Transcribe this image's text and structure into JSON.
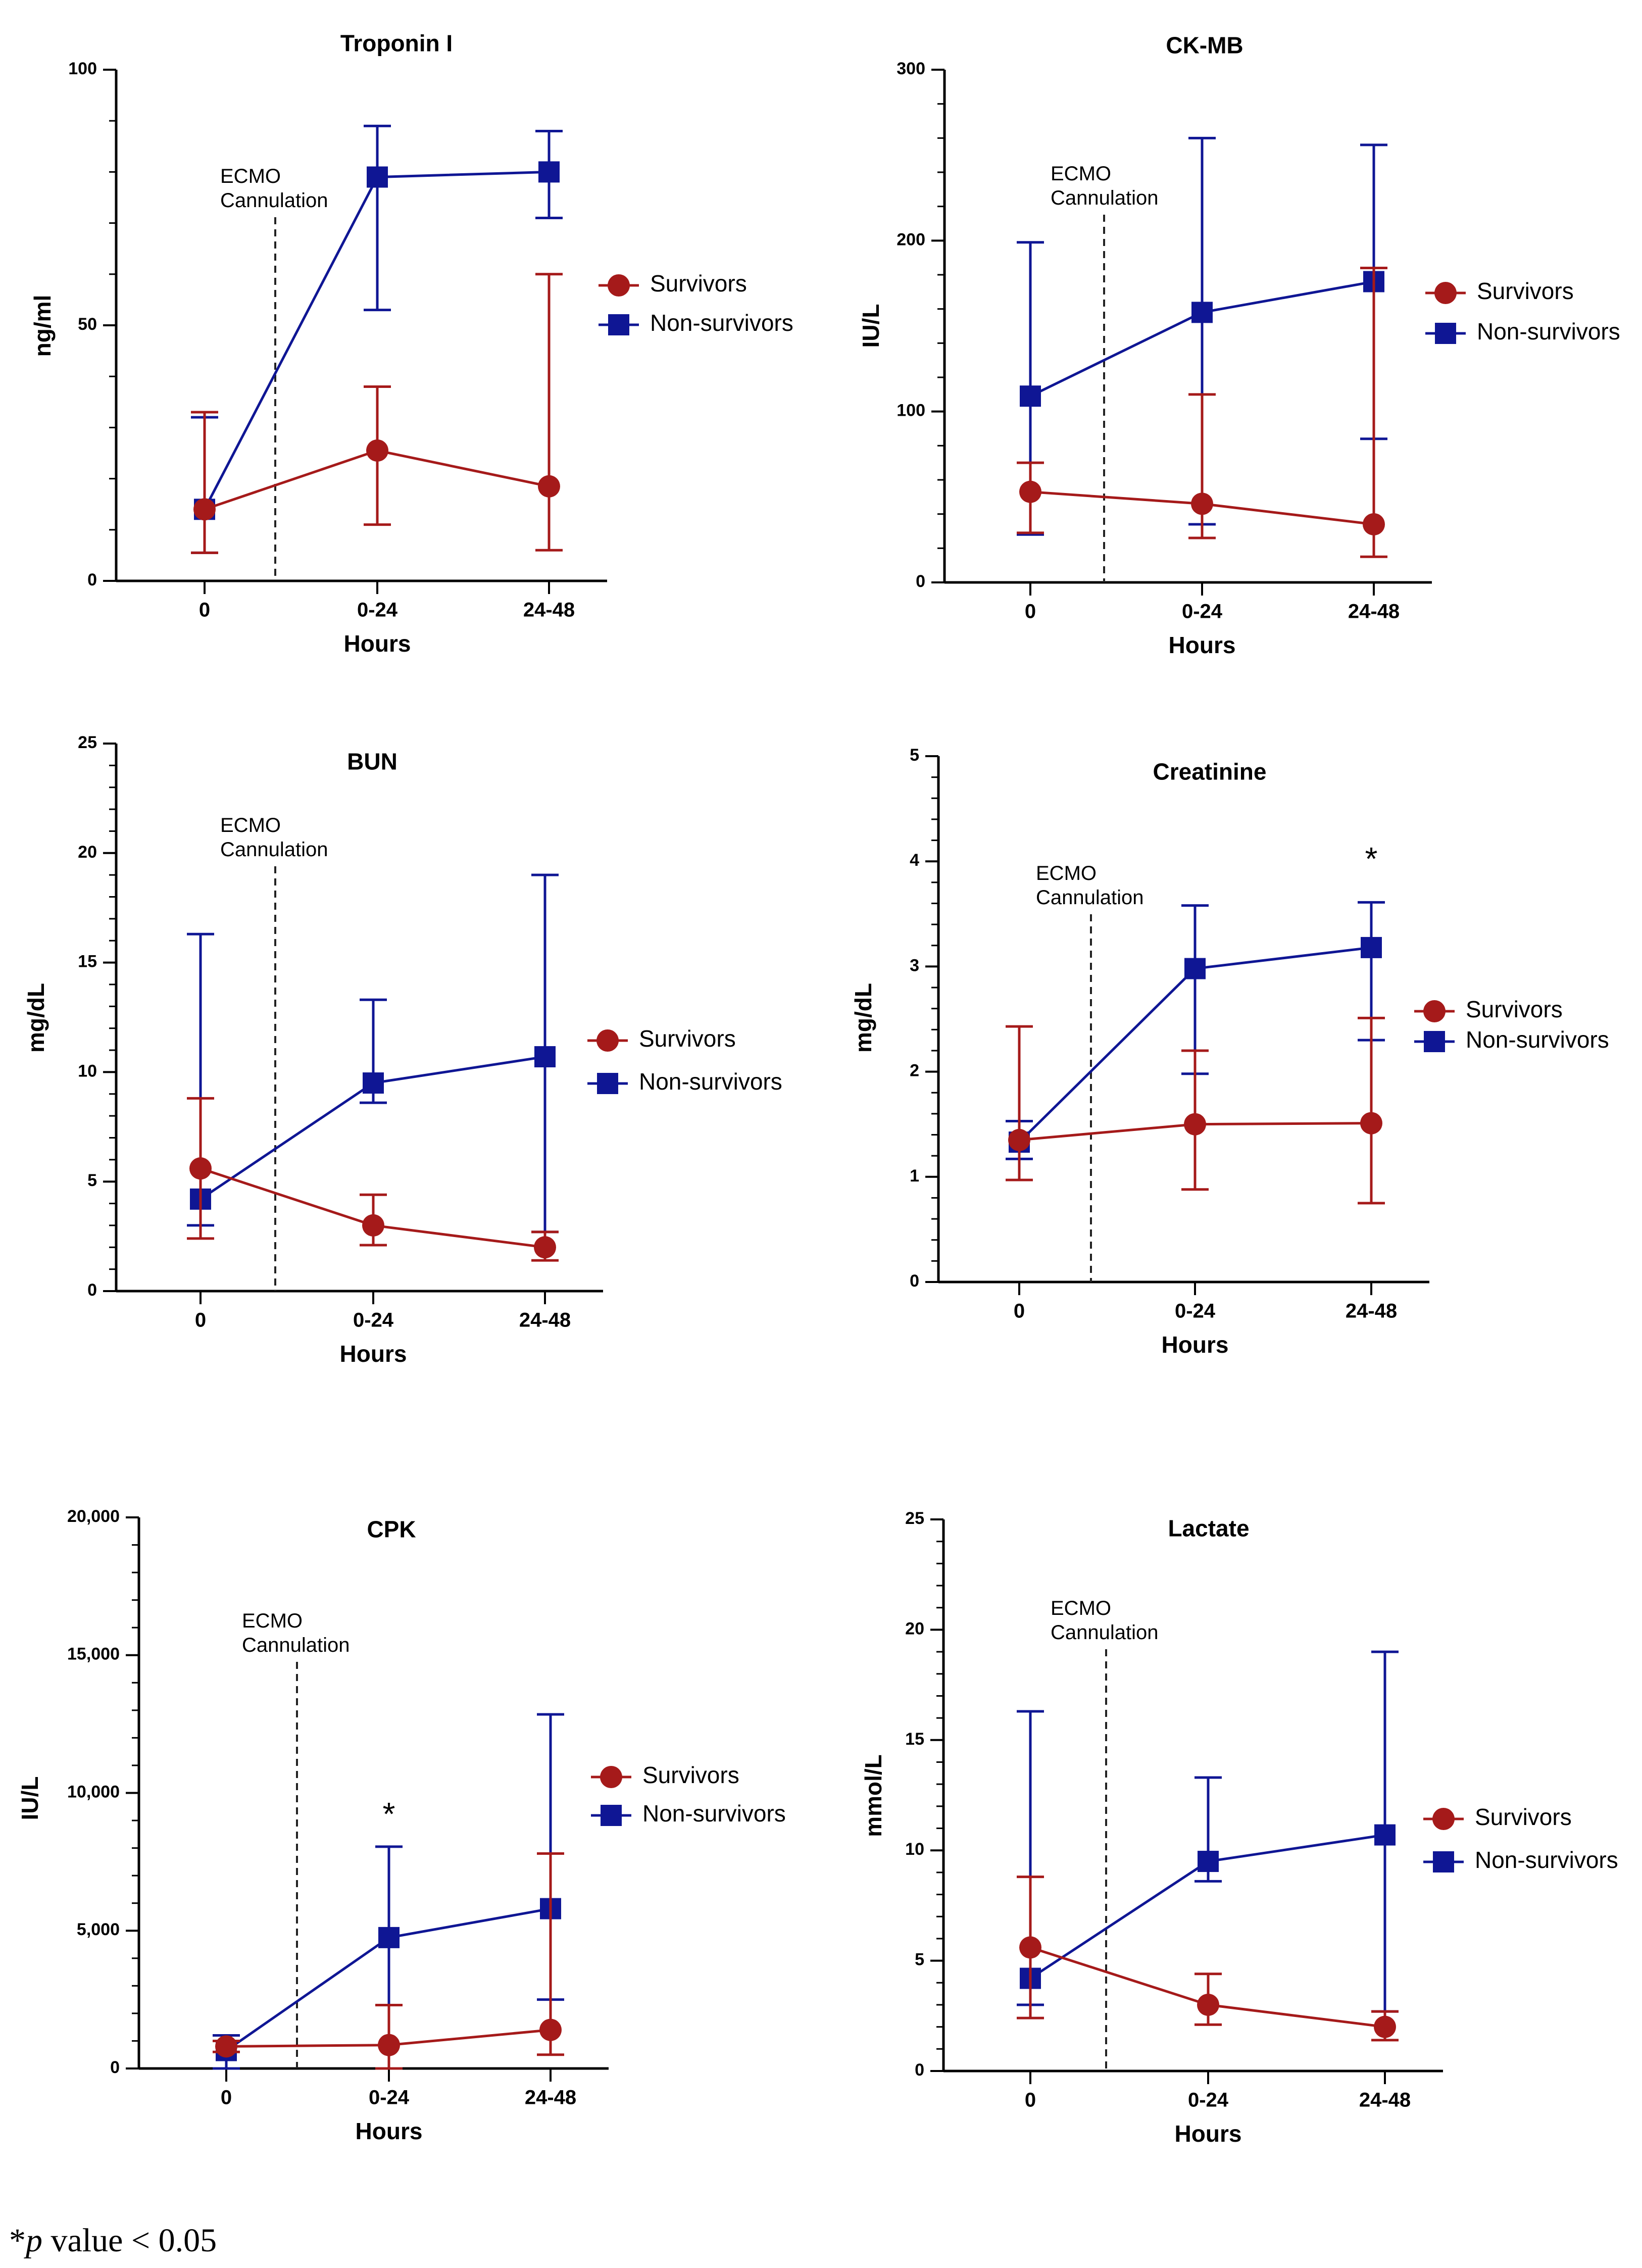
{
  "colors": {
    "survivors": "#a51a1a",
    "non_survivors": "#0f1694",
    "axis": "#000000"
  },
  "footnote": {
    "star": "*",
    "p": "p",
    "rest": " value < 0.05"
  },
  "chart_data": [
    {
      "type": "line",
      "title": "Troponin I",
      "xlabel": "Hours",
      "ylabel": "ng/ml",
      "categories": [
        "0",
        "0-24",
        "24-48"
      ],
      "ylim": [
        0,
        100
      ],
      "yticks": [
        0,
        50,
        100
      ],
      "ytick_labels": [
        "0",
        "50",
        "100"
      ],
      "minor_step": 10,
      "annotation": [
        "ECMO",
        "Cannulation"
      ],
      "legend": [
        "Survivors",
        "Non-survivors"
      ],
      "series": [
        {
          "name": "Survivors",
          "values": [
            14,
            25.5,
            18.5
          ],
          "err_low": [
            5.5,
            11,
            6
          ],
          "err_high": [
            33,
            38,
            60
          ]
        },
        {
          "name": "Non-survivors",
          "values": [
            14,
            79,
            80
          ],
          "err_low": [
            5.5,
            53,
            71
          ],
          "err_high": [
            32,
            89,
            88
          ]
        }
      ],
      "significance": []
    },
    {
      "type": "line",
      "title": "CK-MB",
      "xlabel": "Hours",
      "ylabel": "IU/L",
      "categories": [
        "0",
        "0-24",
        "24-48"
      ],
      "ylim": [
        0,
        300
      ],
      "yticks": [
        0,
        100,
        200,
        300
      ],
      "ytick_labels": [
        "0",
        "100",
        "200",
        "300"
      ],
      "minor_step": 20,
      "annotation": [
        "ECMO",
        "Cannulation"
      ],
      "legend": [
        "Survivors",
        "Non-survivors"
      ],
      "series": [
        {
          "name": "Survivors",
          "values": [
            53,
            46,
            34
          ],
          "err_low": [
            29,
            26,
            15
          ],
          "err_high": [
            70,
            110,
            184
          ]
        },
        {
          "name": "Non-survivors",
          "values": [
            109,
            158,
            176
          ],
          "err_low": [
            28,
            34,
            84
          ],
          "err_high": [
            199,
            260,
            256
          ]
        }
      ],
      "significance": []
    },
    {
      "type": "line",
      "title": "BUN",
      "xlabel": "Hours",
      "ylabel": "mg/dL",
      "categories": [
        "0",
        "0-24",
        "24-48"
      ],
      "ylim": [
        0,
        25
      ],
      "yticks": [
        0,
        5,
        10,
        15,
        20,
        25
      ],
      "ytick_labels": [
        "0",
        "5",
        "10",
        "15",
        "20",
        "25"
      ],
      "minor_step": 1,
      "annotation": [
        "ECMO",
        "Cannulation"
      ],
      "legend": [
        "Survivors",
        "Non-survivors"
      ],
      "series": [
        {
          "name": "Survivors",
          "values": [
            5.6,
            3.0,
            2.0
          ],
          "err_low": [
            2.4,
            2.1,
            1.4
          ],
          "err_high": [
            8.8,
            4.4,
            2.7
          ]
        },
        {
          "name": "Non-survivors",
          "values": [
            4.2,
            9.5,
            10.7
          ],
          "err_low": [
            3.0,
            8.6,
            2.7
          ],
          "err_high": [
            16.3,
            13.3,
            19.0
          ]
        }
      ],
      "significance": []
    },
    {
      "type": "line",
      "title": "Creatinine",
      "xlabel": "Hours",
      "ylabel": "mg/dL",
      "categories": [
        "0",
        "0-24",
        "24-48"
      ],
      "ylim": [
        0,
        5
      ],
      "yticks": [
        0,
        1,
        2,
        3,
        4,
        5
      ],
      "ytick_labels": [
        "0",
        "1",
        "2",
        "3",
        "4",
        "5"
      ],
      "minor_step": 0.2,
      "annotation": [
        "ECMO",
        "Cannulation"
      ],
      "legend": [
        "Survivors",
        "Non-survivors"
      ],
      "series": [
        {
          "name": "Survivors",
          "values": [
            1.35,
            1.5,
            1.51
          ],
          "err_low": [
            0.97,
            0.88,
            0.75
          ],
          "err_high": [
            2.43,
            2.2,
            2.51
          ]
        },
        {
          "name": "Non-survivors",
          "values": [
            1.33,
            2.98,
            3.18
          ],
          "err_low": [
            1.17,
            1.98,
            2.3
          ],
          "err_high": [
            1.53,
            3.58,
            3.61
          ]
        }
      ],
      "significance": [
        {
          "category": 2,
          "value": 4.0,
          "label": "*"
        }
      ]
    },
    {
      "type": "line",
      "title": "CPK",
      "xlabel": "Hours",
      "ylabel": "IU/L",
      "categories": [
        "0",
        "0-24",
        "24-48"
      ],
      "ylim": [
        0,
        20000
      ],
      "yticks": [
        0,
        5000,
        10000,
        15000,
        20000
      ],
      "ytick_labels": [
        "0",
        "5,000",
        "10,000",
        "15,000",
        "20,000"
      ],
      "minor_step": 1000,
      "annotation": [
        "ECMO",
        "Cannulation"
      ],
      "legend": [
        "Survivors",
        "Non-survivors"
      ],
      "series": [
        {
          "name": "Survivors",
          "values": [
            800,
            850,
            1400
          ],
          "err_low": [
            600,
            0,
            500
          ],
          "err_high": [
            1000,
            2300,
            7800
          ]
        },
        {
          "name": "Non-survivors",
          "values": [
            650,
            4750,
            5800
          ],
          "err_low": [
            0,
            0,
            2500
          ],
          "err_high": [
            1200,
            8050,
            12850
          ]
        }
      ],
      "significance": [
        {
          "category": 1,
          "value": 9150,
          "label": "*"
        }
      ]
    },
    {
      "type": "line",
      "title": "Lactate",
      "xlabel": "Hours",
      "ylabel": "mmol/L",
      "categories": [
        "0",
        "0-24",
        "24-48"
      ],
      "ylim": [
        0,
        25
      ],
      "yticks": [
        0,
        5,
        10,
        15,
        20,
        25
      ],
      "ytick_labels": [
        "0",
        "5",
        "10",
        "15",
        "20",
        "25"
      ],
      "minor_step": 1,
      "annotation": [
        "ECMO",
        "Cannulation"
      ],
      "legend": [
        "Survivors",
        "Non-survivors"
      ],
      "series": [
        {
          "name": "Survivors",
          "values": [
            5.6,
            3.0,
            2.0
          ],
          "err_low": [
            2.4,
            2.1,
            1.4
          ],
          "err_high": [
            8.8,
            4.4,
            2.7
          ]
        },
        {
          "name": "Non-survivors",
          "values": [
            4.2,
            9.5,
            10.7
          ],
          "err_low": [
            3.0,
            8.6,
            2.7
          ],
          "err_high": [
            16.3,
            13.3,
            19.0
          ]
        }
      ],
      "significance": []
    }
  ]
}
